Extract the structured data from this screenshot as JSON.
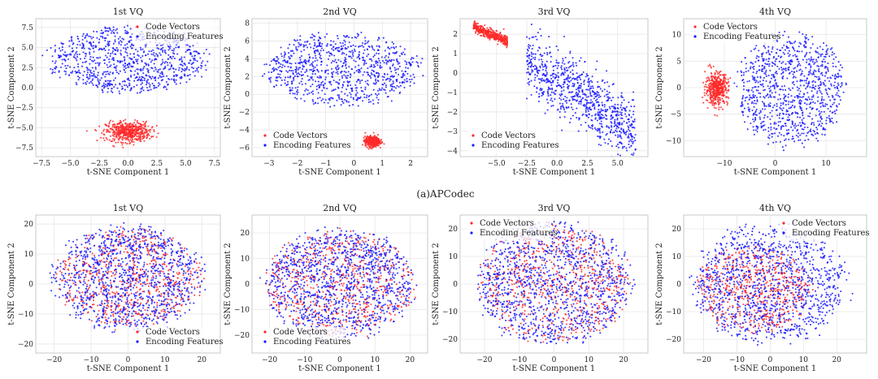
{
  "figure": {
    "caption": "(a)APCodec"
  },
  "legend_labels": {
    "code": "Code Vectors",
    "enc": "Encoding Features"
  },
  "colors": {
    "code_vectors": "#ff2a2a",
    "encoding_features": "#1b1bff",
    "grid": "#e6e6e6",
    "frame": "#bdbdbd"
  },
  "chart_data": [
    {
      "type": "scatter",
      "row": 1,
      "col": 1,
      "title": "1st VQ",
      "xlabel": "t-SNE Component 1",
      "ylabel": "t-SNE Component 2",
      "xlim": [
        -8,
        8
      ],
      "ylim": [
        -8.6,
        8.6
      ],
      "xticks": [
        -7.5,
        -5.0,
        -2.5,
        0.0,
        2.5,
        5.0,
        7.5
      ],
      "yticks": [
        -7.5,
        -5.0,
        -2.5,
        0.0,
        2.5,
        5.0,
        7.5
      ],
      "xtick_labels": [
        "−7.5",
        "−5.0",
        "−2.5",
        "0.0",
        "2.5",
        "5.0",
        "7.5"
      ],
      "ytick_labels": [
        "−7.5",
        "−5.0",
        "−2.5",
        "0.0",
        "2.5",
        "5.0",
        "7.5"
      ],
      "legend_position": "upper right",
      "series": [
        {
          "name": "Encoding Features",
          "clusters": [
            {
              "cx": 0.0,
              "cy": 3.5,
              "sx": 7.2,
              "sy": 4.2,
              "n": 900,
              "shape": "ellipse"
            }
          ]
        },
        {
          "name": "Code Vectors",
          "clusters": [
            {
              "cx": 0.0,
              "cy": -5.5,
              "sx": 1.9,
              "sy": 1.25,
              "n": 520,
              "shape": "gauss"
            }
          ]
        }
      ]
    },
    {
      "type": "scatter",
      "row": 1,
      "col": 2,
      "title": "2nd VQ",
      "xlabel": "t-SNE Component 1",
      "ylabel": "t-SNE Component 2",
      "xlim": [
        -3.6,
        2.6
      ],
      "ylim": [
        -7,
        8.5
      ],
      "xticks": [
        -3,
        -2,
        -1,
        0,
        1,
        2
      ],
      "yticks": [
        -6,
        -4,
        -2,
        0,
        2,
        4,
        6,
        8
      ],
      "xtick_labels": [
        "−3",
        "−2",
        "−1",
        "0",
        "1",
        "2"
      ],
      "ytick_labels": [
        "−6",
        "−4",
        "−2",
        "0",
        "2",
        "4",
        "6",
        "8"
      ],
      "legend_position": "lower left",
      "series": [
        {
          "name": "Encoding Features",
          "clusters": [
            {
              "cx": -0.4,
              "cy": 2.8,
              "sx": 2.8,
              "sy": 4.2,
              "n": 900,
              "shape": "ellipse"
            }
          ]
        },
        {
          "name": "Code Vectors",
          "clusters": [
            {
              "cx": 0.65,
              "cy": -5.3,
              "sx": 0.25,
              "sy": 0.55,
              "n": 480,
              "shape": "gauss"
            }
          ]
        }
      ]
    },
    {
      "type": "scatter",
      "row": 1,
      "col": 3,
      "title": "3rd VQ",
      "xlabel": "t-SNE Component 1",
      "ylabel": "t-SNE Component 2",
      "xlim": [
        -8,
        7.5
      ],
      "ylim": [
        -4.3,
        2.8
      ],
      "xticks": [
        -5.0,
        -2.5,
        0.0,
        2.5,
        5.0
      ],
      "yticks": [
        -4,
        -3,
        -2,
        -1,
        0,
        1,
        2
      ],
      "xtick_labels": [
        "−5.0",
        "−2.5",
        "0.0",
        "2.5",
        "5.0"
      ],
      "ytick_labels": [
        "−4",
        "−3",
        "−2",
        "−1",
        "0",
        "1",
        "2"
      ],
      "legend_position": "lower left",
      "series": [
        {
          "name": "Encoding Features",
          "clusters": [
            {
              "cx": 2.0,
              "cy": -1.2,
              "sx": 4.5,
              "sy": 1.6,
              "n": 850,
              "shape": "band",
              "slope": -0.38
            }
          ]
        },
        {
          "name": "Code Vectors",
          "clusters": [
            {
              "cx": -5.5,
              "cy": 2.0,
              "sx": 1.4,
              "sy": 0.25,
              "n": 420,
              "shape": "band",
              "slope": -0.25
            }
          ]
        }
      ]
    },
    {
      "type": "scatter",
      "row": 1,
      "col": 4,
      "title": "4th VQ",
      "xlabel": "t-SNE Component 1",
      "ylabel": "t-SNE Component 2",
      "xlim": [
        -18,
        18
      ],
      "ylim": [
        -13,
        13
      ],
      "xticks": [
        -10,
        0,
        10
      ],
      "yticks": [
        -10,
        -5,
        0,
        5,
        10
      ],
      "xtick_labels": [
        "−10",
        "0",
        "10"
      ],
      "ytick_labels": [
        "−10",
        "−5",
        "0",
        "5",
        "10"
      ],
      "legend_position": "upper left",
      "series": [
        {
          "name": "Encoding Features",
          "clusters": [
            {
              "cx": 3.0,
              "cy": -0.5,
              "sx": 11.0,
              "sy": 11.0,
              "n": 950,
              "shape": "ellipse"
            }
          ]
        },
        {
          "name": "Code Vectors",
          "clusters": [
            {
              "cx": -11.5,
              "cy": -0.2,
              "sx": 2.2,
              "sy": 3.0,
              "n": 450,
              "shape": "gauss"
            }
          ]
        }
      ]
    },
    {
      "type": "scatter",
      "row": 2,
      "col": 1,
      "title": "1st VQ",
      "xlabel": "t-SNE Component 1",
      "ylabel": "t-SNE Component 2",
      "xlim": [
        -25,
        25
      ],
      "ylim": [
        -23,
        23
      ],
      "xticks": [
        -20,
        -10,
        0,
        10,
        20
      ],
      "yticks": [
        -20,
        -10,
        0,
        10,
        20
      ],
      "xtick_labels": [
        "−20",
        "−10",
        "0",
        "10",
        "20"
      ],
      "ytick_labels": [
        "−20",
        "−10",
        "0",
        "10",
        "20"
      ],
      "legend_position": "lower right",
      "series": [
        {
          "name": "Code Vectors",
          "clusters": [
            {
              "cx": 0,
              "cy": 2,
              "sx": 20,
              "sy": 17,
              "n": 650,
              "shape": "ellipse"
            }
          ]
        },
        {
          "name": "Encoding Features",
          "clusters": [
            {
              "cx": 0,
              "cy": 2,
              "sx": 21,
              "sy": 18,
              "n": 1100,
              "shape": "ellipse"
            }
          ]
        }
      ]
    },
    {
      "type": "scatter",
      "row": 2,
      "col": 2,
      "title": "2nd VQ",
      "xlabel": "t-SNE Component 1",
      "ylabel": "t-SNE Component 2",
      "xlim": [
        -25,
        25
      ],
      "ylim": [
        -27,
        27
      ],
      "xticks": [
        -20,
        -10,
        0,
        10,
        20
      ],
      "yticks": [
        -20,
        -10,
        0,
        10,
        20
      ],
      "xtick_labels": [
        "−20",
        "−10",
        "0",
        "10",
        "20"
      ],
      "ytick_labels": [
        "−20",
        "−10",
        "0",
        "10",
        "20"
      ],
      "legend_position": "lower left",
      "series": [
        {
          "name": "Code Vectors",
          "clusters": [
            {
              "cx": 0,
              "cy": 0,
              "sx": 22,
              "sy": 21,
              "n": 650,
              "shape": "ellipse"
            }
          ]
        },
        {
          "name": "Encoding Features",
          "clusters": [
            {
              "cx": 0,
              "cy": 0,
              "sx": 22,
              "sy": 22,
              "n": 1150,
              "shape": "ellipse"
            }
          ]
        }
      ]
    },
    {
      "type": "scatter",
      "row": 2,
      "col": 3,
      "title": "3rd VQ",
      "xlabel": "t-SNE Component 1",
      "ylabel": "t-SNE Component 2",
      "xlim": [
        -27,
        27
      ],
      "ylim": [
        -25,
        25
      ],
      "xticks": [
        -20,
        -10,
        0,
        10,
        20
      ],
      "yticks": [
        -20,
        -10,
        0,
        10,
        20
      ],
      "xtick_labels": [
        "−20",
        "−10",
        "0",
        "10",
        "20"
      ],
      "ytick_labels": [
        "−20",
        "−10",
        "0",
        "10",
        "20"
      ],
      "legend_position": "upper left",
      "series": [
        {
          "name": "Code Vectors",
          "clusters": [
            {
              "cx": 0,
              "cy": 0,
              "sx": 22,
              "sy": 22,
              "n": 650,
              "shape": "ellipse"
            }
          ]
        },
        {
          "name": "Encoding Features",
          "clusters": [
            {
              "cx": 0,
              "cy": 0,
              "sx": 23,
              "sy": 23,
              "n": 1150,
              "shape": "ellipse"
            }
          ]
        }
      ]
    },
    {
      "type": "scatter",
      "row": 2,
      "col": 4,
      "title": "4th VQ",
      "xlabel": "t-SNE Component 1",
      "ylabel": "t-SNE Component 2",
      "xlim": [
        -26,
        29
      ],
      "ylim": [
        -25,
        25
      ],
      "xticks": [
        -20,
        -10,
        0,
        10,
        20
      ],
      "yticks": [
        -20,
        -10,
        0,
        10,
        20
      ],
      "xtick_labels": [
        "−20",
        "−10",
        "0",
        "10",
        "20"
      ],
      "ytick_labels": [
        "−20",
        "−10",
        "0",
        "10",
        "20"
      ],
      "legend_position": "upper right",
      "series": [
        {
          "name": "Code Vectors",
          "clusters": [
            {
              "cx": -5,
              "cy": -2,
              "sx": 18,
              "sy": 16,
              "n": 600,
              "shape": "ellipse"
            }
          ]
        },
        {
          "name": "Encoding Features",
          "clusters": [
            {
              "cx": 0,
              "cy": 0,
              "sx": 24,
              "sy": 22,
              "n": 1150,
              "shape": "ellipse"
            }
          ]
        }
      ]
    }
  ]
}
